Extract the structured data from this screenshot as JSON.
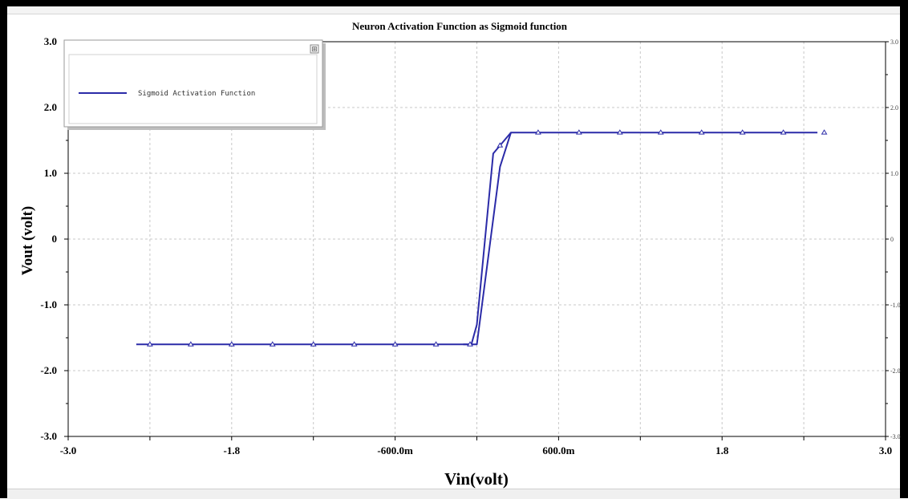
{
  "chart_data": {
    "type": "line",
    "title": "Neuron Activation Function as Sigmoid function",
    "xlabel": "Vin(volt)",
    "ylabel": "Vout (volt)",
    "xlim": [
      -3.0,
      3.0
    ],
    "ylim": [
      -3.0,
      3.0
    ],
    "grid": true,
    "legend_position": "top-left",
    "x_ticks": [
      {
        "value": -3.0,
        "label": "-3.0"
      },
      {
        "value": -1.8,
        "label": "-1.8"
      },
      {
        "value": -0.6,
        "label": "-600.0m"
      },
      {
        "value": 0.6,
        "label": "600.0m"
      },
      {
        "value": 1.8,
        "label": "1.8"
      },
      {
        "value": 3.0,
        "label": "3.0"
      }
    ],
    "x_minor_ticks": [
      -2.4,
      -1.2,
      0.0,
      1.2,
      2.4
    ],
    "y_ticks": [
      {
        "value": 3.0,
        "label": "3.0"
      },
      {
        "value": 2.0,
        "label": "2.0"
      },
      {
        "value": 1.0,
        "label": "1.0"
      },
      {
        "value": 0.0,
        "label": "0"
      },
      {
        "value": -1.0,
        "label": "-1.0"
      },
      {
        "value": -2.0,
        "label": "-2.0"
      },
      {
        "value": -3.0,
        "label": "-3.0"
      }
    ],
    "series": [
      {
        "name": "Sigmoid Activation Function",
        "color": "#2b2ba8",
        "marker": "triangle",
        "x": [
          -2.5,
          -2.2,
          -1.9,
          -1.6,
          -1.3,
          -1.0,
          -0.7,
          -0.4,
          -0.1,
          -0.04,
          0.0,
          0.12,
          0.25,
          0.6,
          0.9,
          1.2,
          1.5,
          1.8,
          2.1,
          2.4,
          2.5
        ],
        "y": [
          -1.6,
          -1.6,
          -1.6,
          -1.6,
          -1.6,
          -1.6,
          -1.6,
          -1.6,
          -1.6,
          -1.6,
          -1.3,
          1.3,
          1.62,
          1.62,
          1.62,
          1.62,
          1.62,
          1.62,
          1.62,
          1.62,
          1.62
        ]
      },
      {
        "name": "",
        "color": "#2b2ba8",
        "marker": "none",
        "x": [
          -0.1,
          0.0,
          0.17,
          0.25
        ],
        "y": [
          -1.6,
          -1.6,
          1.1,
          1.62
        ]
      }
    ],
    "marker_x": [
      -2.4,
      -2.1,
      -1.8,
      -1.5,
      -1.2,
      -0.9,
      -0.6,
      -0.3,
      -0.05,
      0.17,
      0.45,
      0.75,
      1.05,
      1.35,
      1.65,
      1.95,
      2.25,
      2.55
    ]
  },
  "legend": {
    "entry_label": "Sigmoid Activation Function",
    "button_glyph": "⊞"
  },
  "colors": {
    "series": "#2b2ba8",
    "grid": "#c8c8c8",
    "frame": "#000000"
  }
}
